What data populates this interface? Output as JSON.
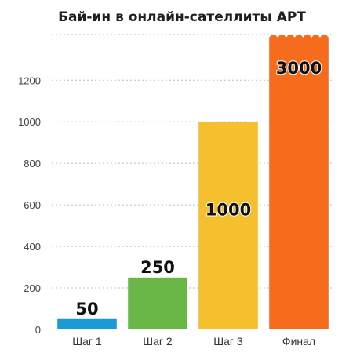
{
  "chart_data": {
    "type": "bar",
    "title": "Бай-ин в онлайн-сателлиты APT",
    "categories": [
      "Шаг 1",
      "Шаг 2",
      "Шаг 3",
      "Финал"
    ],
    "values": [
      50,
      250,
      1000,
      3000
    ],
    "data_labels": [
      "50",
      "250",
      "1000",
      "3000"
    ],
    "y_ticks": [
      0,
      200,
      400,
      600,
      800,
      1000,
      1200
    ],
    "y_tick_labels": [
      "0",
      "200",
      "400",
      "600",
      "800",
      "1000",
      "1200"
    ],
    "ylim": [
      0,
      1420
    ],
    "grid": true,
    "bar_colors": [
      "#1c9ad6",
      "#6ab747",
      "#f4c02e",
      "#f76b1c"
    ],
    "truncated_bar": "Финал"
  }
}
